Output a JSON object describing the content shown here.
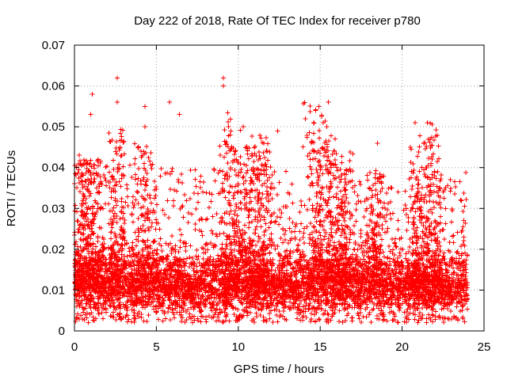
{
  "chart_data": {
    "type": "scatter",
    "title": "Day 222 of 2018, Rate Of TEC Index for receiver p780",
    "xlabel": "GPS time / hours",
    "ylabel": "ROTI / TECUs",
    "xlim": [
      0,
      25
    ],
    "ylim": [
      0,
      0.07
    ],
    "x_ticks": [
      0,
      5,
      10,
      15,
      20,
      25
    ],
    "y_ticks": [
      0,
      0.01,
      0.02,
      0.03,
      0.04,
      0.05,
      0.06,
      0.07
    ],
    "x_tick_labels": [
      "0",
      "5",
      "10",
      "15",
      "20",
      "25"
    ],
    "y_tick_labels": [
      "0",
      "0.01",
      "0.02",
      "0.03",
      "0.04",
      "0.05",
      "0.06",
      "0.07"
    ],
    "grid": true,
    "marker": "+",
    "color": "#ff0000",
    "series": [
      {
        "name": "ROTI",
        "x_range": [
          0,
          24
        ],
        "dense_band": [
          0.005,
          0.018
        ],
        "notable_points": [
          {
            "x": 1.1,
            "y": 0.058
          },
          {
            "x": 1.0,
            "y": 0.053
          },
          {
            "x": 2.6,
            "y": 0.062
          },
          {
            "x": 2.6,
            "y": 0.056
          },
          {
            "x": 4.3,
            "y": 0.055
          },
          {
            "x": 4.3,
            "y": 0.05
          },
          {
            "x": 5.8,
            "y": 0.056
          },
          {
            "x": 6.4,
            "y": 0.053
          },
          {
            "x": 9.1,
            "y": 0.062
          },
          {
            "x": 9.1,
            "y": 0.06
          },
          {
            "x": 12.4,
            "y": 0.049
          },
          {
            "x": 14.6,
            "y": 0.051
          },
          {
            "x": 15.5,
            "y": 0.056
          },
          {
            "x": 15.4,
            "y": 0.05
          },
          {
            "x": 20.8,
            "y": 0.051
          },
          {
            "x": 21.7,
            "y": 0.047
          },
          {
            "x": 18.5,
            "y": 0.046
          },
          {
            "x": 0.3,
            "y": 0.043
          }
        ],
        "activity_peaks": [
          {
            "x": 2.6,
            "height": 0.038
          },
          {
            "x": 4.3,
            "height": 0.034
          },
          {
            "x": 9.5,
            "height": 0.042
          },
          {
            "x": 10.5,
            "height": 0.034
          },
          {
            "x": 11.5,
            "height": 0.036
          },
          {
            "x": 14.7,
            "height": 0.044
          },
          {
            "x": 15.5,
            "height": 0.036
          },
          {
            "x": 16.5,
            "height": 0.032
          },
          {
            "x": 18.5,
            "height": 0.028
          },
          {
            "x": 21.0,
            "height": 0.036
          },
          {
            "x": 21.9,
            "height": 0.04
          },
          {
            "x": 0.4,
            "height": 0.03
          },
          {
            "x": 1.1,
            "height": 0.03
          }
        ]
      }
    ]
  }
}
